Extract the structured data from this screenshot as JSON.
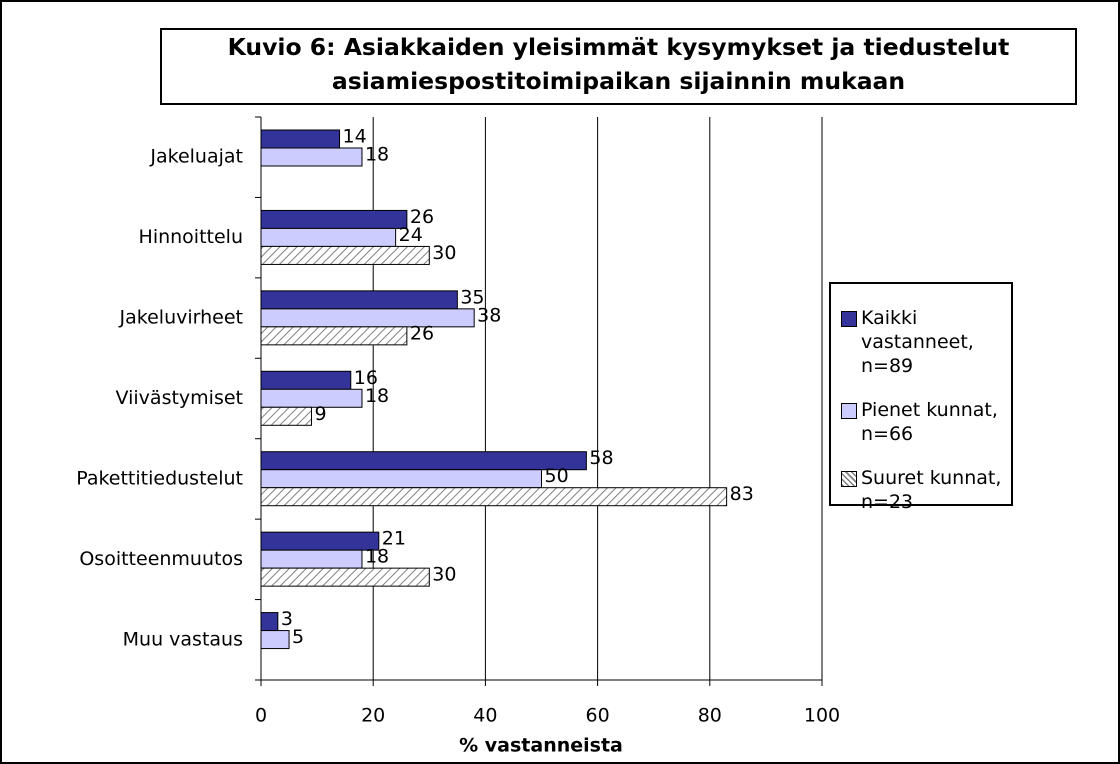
{
  "chart_data": {
    "type": "bar",
    "orientation": "horizontal",
    "title": "Kuvio 6: Asiakkaiden yleisimmät kysymykset ja tiedustelut asiamiespostitoimipaikan sijainnin mukaan",
    "x_label": "% vastanneista",
    "categories": [
      "Jakeluajat",
      "Hinnoittelu",
      "Jakeluvirheet",
      "Viivästymiset",
      "Pakettitiedustelut",
      "Osoitteenmuutos",
      "Muu vastaus"
    ],
    "series": [
      {
        "name": "Kaikki vastanneet, n=89",
        "color": "#333399",
        "values": [
          14,
          26,
          35,
          16,
          58,
          21,
          3
        ]
      },
      {
        "name": "Pienet kunnat, n=66",
        "color": "#ccccff",
        "values": [
          18,
          24,
          38,
          18,
          50,
          18,
          5
        ]
      },
      {
        "name": "Suuret kunnat, n=23",
        "color": "#808080",
        "hatch": true,
        "values": [
          null,
          30,
          26,
          9,
          83,
          30,
          null
        ]
      }
    ],
    "xlim": [
      0,
      100
    ],
    "xticks": [
      0,
      20,
      40,
      60,
      80,
      100
    ],
    "grid": true,
    "legend": "right"
  }
}
